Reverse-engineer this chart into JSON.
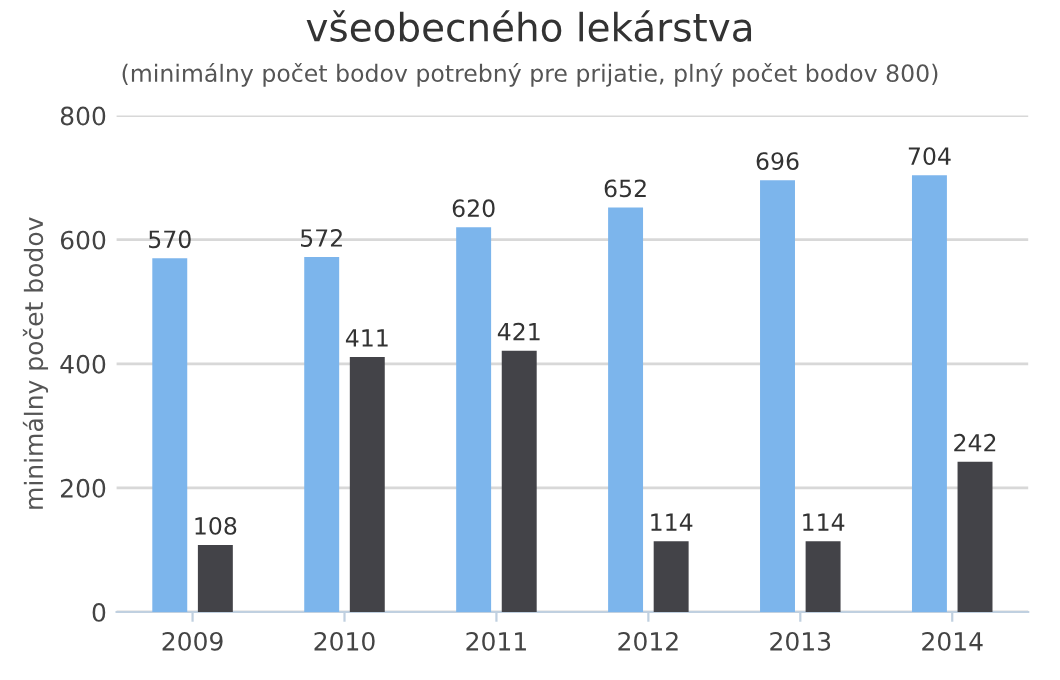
{
  "chart_data": {
    "type": "bar",
    "title": "všeobecného lekárstva",
    "subtitle": "(minimálny počet bodov potrebný pre prijatie, plný počet bodov 800)",
    "ylabel": "minimálny počet bodov",
    "categories": [
      "2009",
      "2010",
      "2011",
      "2012",
      "2013",
      "2014"
    ],
    "series": [
      {
        "color": "#7cb5ec",
        "values": [
          570,
          572,
          620,
          652,
          696,
          704
        ]
      },
      {
        "color": "#434348",
        "values": [
          108,
          411,
          421,
          114,
          114,
          242
        ]
      }
    ],
    "ylim": [
      0,
      800
    ],
    "yticks": [
      0,
      200,
      400,
      600,
      800
    ],
    "grid": "y",
    "data_labels": true
  }
}
